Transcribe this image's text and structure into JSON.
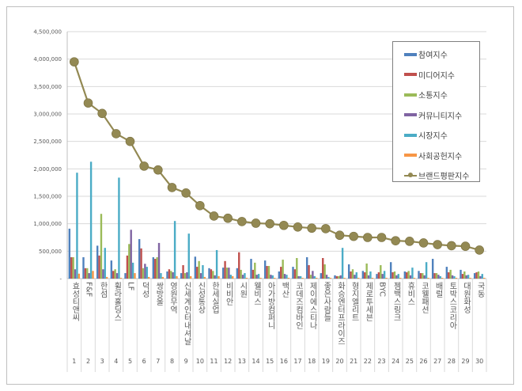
{
  "chart_data": {
    "type": "bar",
    "categories": [
      "효성티앤씨",
      "F&F",
      "한섬",
      "휠라홀딩스",
      "LF",
      "덕성",
      "쌍방울",
      "영원무역",
      "신세계인터내셔날",
      "신성통상",
      "한세실업",
      "비비안",
      "시원",
      "웰비스",
      "아가방컴퍼니",
      "백산",
      "코데즈컴바인",
      "제이에스티나",
      "좋은사람들",
      "화승엔터프라이즈",
      "형지엘리트",
      "제로투세븐",
      "BYC",
      "젬백스링크",
      "휴비스",
      "코웰패션",
      "배럴",
      "토박스코리아",
      "대원화성",
      "국동"
    ],
    "ranks": [
      "1",
      "2",
      "3",
      "4",
      "5",
      "6",
      "7",
      "8",
      "9",
      "10",
      "11",
      "12",
      "13",
      "14",
      "15",
      "16",
      "17",
      "18",
      "19",
      "20",
      "21",
      "22",
      "23",
      "24",
      "25",
      "26",
      "27",
      "28",
      "29",
      "30"
    ],
    "ylim": [
      0,
      4500000
    ],
    "yticks": [
      "-",
      "500,000",
      "1,000,000",
      "1,500,000",
      "2,000,000",
      "2,500,000",
      "3,000,000",
      "3,500,000",
      "4,000,000",
      "4,500,000"
    ],
    "grid": true,
    "legend_position": "top-right",
    "series": [
      {
        "name": "참여지수",
        "kind": "bar",
        "color": "#4f81bd",
        "values": [
          910000,
          390000,
          600000,
          330000,
          100000,
          720000,
          390000,
          130000,
          100000,
          400000,
          190000,
          200000,
          190000,
          360000,
          330000,
          130000,
          215000,
          390000,
          100000,
          60000,
          260000,
          140000,
          85000,
          300000,
          130000,
          140000,
          360000,
          215000,
          160000,
          100000
        ]
      },
      {
        "name": "미디어지수",
        "kind": "bar",
        "color": "#c0504d",
        "values": [
          390000,
          190000,
          420000,
          140000,
          420000,
          550000,
          360000,
          170000,
          245000,
          215000,
          170000,
          320000,
          480000,
          160000,
          230000,
          215000,
          170000,
          245000,
          375000,
          45000,
          130000,
          115000,
          115000,
          115000,
          115000,
          100000,
          100000,
          115000,
          85000,
          115000
        ]
      },
      {
        "name": "소통지수",
        "kind": "bar",
        "color": "#9bbb59",
        "values": [
          390000,
          190000,
          1180000,
          170000,
          630000,
          190000,
          390000,
          140000,
          100000,
          320000,
          140000,
          200000,
          160000,
          290000,
          230000,
          345000,
          375000,
          70000,
          260000,
          45000,
          170000,
          275000,
          245000,
          130000,
          140000,
          100000,
          100000,
          160000,
          130000,
          130000
        ]
      },
      {
        "name": "커뮤니티지수",
        "kind": "bar",
        "color": "#8064a2",
        "values": [
          170000,
          100000,
          170000,
          100000,
          890000,
          270000,
          650000,
          115000,
          115000,
          100000,
          60000,
          200000,
          70000,
          70000,
          70000,
          85000,
          45000,
          140000,
          70000,
          60000,
          70000,
          60000,
          85000,
          60000,
          60000,
          60000,
          70000,
          60000,
          60000,
          45000
        ]
      },
      {
        "name": "시장지수",
        "kind": "bar",
        "color": "#4bacc6",
        "values": [
          1930000,
          2130000,
          560000,
          1840000,
          290000,
          215000,
          100000,
          1050000,
          820000,
          245000,
          520000,
          70000,
          100000,
          85000,
          60000,
          70000,
          45000,
          45000,
          30000,
          560000,
          115000,
          130000,
          140000,
          85000,
          200000,
          300000,
          45000,
          45000,
          70000,
          85000
        ]
      },
      {
        "name": "사회공헌지수",
        "kind": "bar",
        "color": "#f79646",
        "values": [
          90000,
          140000,
          30000,
          15000,
          100000,
          30000,
          30000,
          45000,
          45000,
          30000,
          45000,
          45000,
          15000,
          15000,
          15000,
          15000,
          15000,
          15000,
          15000,
          15000,
          15000,
          15000,
          15000,
          15000,
          15000,
          15000,
          15000,
          15000,
          15000,
          15000
        ]
      },
      {
        "name": "브랜드평판지수",
        "kind": "line",
        "color": "#938953",
        "values": [
          3950000,
          3200000,
          3010000,
          2640000,
          2500000,
          2050000,
          1980000,
          1660000,
          1560000,
          1330000,
          1140000,
          1100000,
          1040000,
          1010000,
          1000000,
          970000,
          940000,
          920000,
          910000,
          790000,
          770000,
          750000,
          750000,
          690000,
          680000,
          650000,
          620000,
          600000,
          590000,
          520000
        ]
      }
    ]
  }
}
